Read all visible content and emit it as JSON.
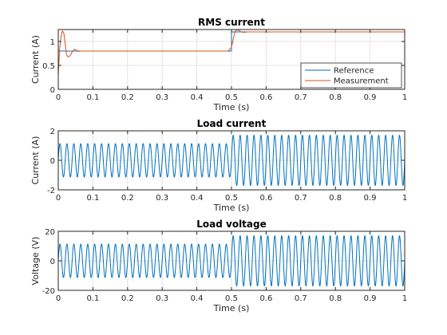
{
  "chart_data": [
    {
      "type": "line",
      "title": "RMS current",
      "xlabel": "Time (s)",
      "ylabel": "Current (A)",
      "xlim": [
        0,
        1
      ],
      "ylim": [
        0,
        1.25
      ],
      "xticks": [
        "0",
        "0.1",
        "0.2",
        "0.3",
        "0.4",
        "0.5",
        "0.6",
        "0.7",
        "0.8",
        "0.9",
        "1"
      ],
      "yticks": [
        "0",
        "0.5",
        "1"
      ],
      "grid": true,
      "legend": "bottom-right",
      "series": [
        {
          "name": "Reference",
          "color": "#0072BD",
          "x": [
            0,
            0.003,
            0.003,
            0.5,
            0.5,
            1.0
          ],
          "y": [
            0.8,
            0.8,
            0.8,
            0.8,
            1.2,
            1.2
          ]
        },
        {
          "name": "Measurement",
          "color": "#D95319",
          "x": [
            0,
            0.004,
            0.008,
            0.012,
            0.016,
            0.02,
            0.024,
            0.028,
            0.034,
            0.04,
            0.046,
            0.052,
            0.058,
            0.064,
            0.07,
            0.49,
            0.5,
            0.505,
            0.51,
            0.516,
            0.522,
            0.528,
            0.536,
            0.545,
            0.56,
            1.0
          ],
          "y": [
            0.3,
            0.85,
            1.1,
            1.22,
            1.18,
            0.95,
            0.72,
            0.68,
            0.7,
            0.78,
            0.84,
            0.82,
            0.79,
            0.8,
            0.8,
            0.8,
            0.88,
            1.05,
            1.2,
            1.25,
            1.23,
            1.2,
            1.19,
            1.2,
            1.2,
            1.2
          ]
        }
      ]
    },
    {
      "type": "line",
      "title": "Load current",
      "xlabel": "Time (s)",
      "ylabel": "Current (A)",
      "xlim": [
        0,
        1
      ],
      "ylim": [
        -2,
        2
      ],
      "xticks": [
        "0",
        "0.1",
        "0.2",
        "0.3",
        "0.4",
        "0.5",
        "0.6",
        "0.7",
        "0.8",
        "0.9",
        "1"
      ],
      "yticks": [
        "-2",
        "0",
        "2"
      ],
      "grid": true,
      "series": [
        {
          "color": "#0072BD",
          "waveform": {
            "frequency_hz": 50,
            "segments": [
              {
                "t_start": 0,
                "t_end": 0.5,
                "amplitude": 1.13
              },
              {
                "t_start": 0.5,
                "t_end": 1.0,
                "amplitude": 1.7
              }
            ]
          }
        }
      ]
    },
    {
      "type": "line",
      "title": "Load voltage",
      "xlabel": "Time (s)",
      "ylabel": "Voltage (V)",
      "xlim": [
        0,
        1
      ],
      "ylim": [
        -20,
        20
      ],
      "xticks": [
        "0",
        "0.1",
        "0.2",
        "0.3",
        "0.4",
        "0.5",
        "0.6",
        "0.7",
        "0.8",
        "0.9",
        "1"
      ],
      "yticks": [
        "-20",
        "0",
        "20"
      ],
      "grid": true,
      "series": [
        {
          "color": "#0072BD",
          "waveform": {
            "frequency_hz": 50,
            "segments": [
              {
                "t_start": 0,
                "t_end": 0.5,
                "amplitude": 11.3
              },
              {
                "t_start": 0.5,
                "t_end": 1.0,
                "amplitude": 17
              }
            ]
          }
        }
      ]
    }
  ]
}
